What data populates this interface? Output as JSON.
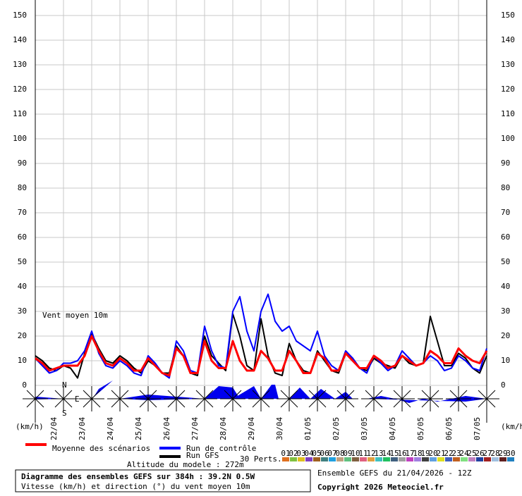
{
  "chart_data": {
    "type": "line",
    "title": "Diagramme des ensembles GEFS sur 384h : 39.2N 0.5W",
    "subtitle": "Vitesse (km/h) et direction (°) du vent moyen 10m",
    "run_label": "Ensemble GEFS du 21/04/2026 - 12Z",
    "copyright": "Copyright 2026 Meteociel.fr",
    "altitude": "Altitude du modele : 272m",
    "panel_label": "Vent moyen 10m",
    "y_unit": "(km/h)",
    "perts_label": "30 Perts.",
    "compass_labels": [
      "N",
      "E",
      "S"
    ],
    "perturbations": {
      "names": [
        "01",
        "02",
        "03",
        "04",
        "05",
        "06",
        "07",
        "08",
        "09",
        "10",
        "11",
        "12",
        "13",
        "14",
        "15",
        "16",
        "17",
        "18",
        "19",
        "20",
        "21",
        "22",
        "23",
        "24",
        "25",
        "26",
        "27",
        "28",
        "29",
        "30"
      ],
      "colors": [
        "#e07020",
        "#80c040",
        "#e0c020",
        "#8040c0",
        "#a06020",
        "#408080",
        "#20a0e0",
        "#c0a080",
        "#60c080",
        "#806040",
        "#e06080",
        "#e0a040",
        "#40c0c0",
        "#20c060",
        "#406080",
        "#a0a0a0",
        "#c040c0",
        "#a080e0",
        "#404040",
        "#60a0e0",
        "#e0e020",
        "#4060c0",
        "#c06020",
        "#80e080",
        "#c080c0",
        "#2040a0",
        "#a02020",
        "#a0c0e0",
        "#602020",
        "#2080c0"
      ]
    },
    "categories": [
      null,
      null,
      null,
      "22/04",
      null,
      null,
      null,
      "23/04",
      null,
      null,
      null,
      "24/04",
      null,
      null,
      null,
      "25/04",
      null,
      null,
      null,
      "26/04",
      null,
      null,
      null,
      "27/04",
      null,
      null,
      null,
      "28/04",
      null,
      null,
      null,
      "29/04",
      null,
      null,
      null,
      "30/04",
      null,
      null,
      null,
      "01/05",
      null,
      null,
      null,
      "02/05",
      null,
      null,
      null,
      "03/05",
      null,
      null,
      null,
      "04/05",
      null,
      null,
      null,
      "05/05",
      null,
      null,
      null,
      "06/05",
      null,
      null,
      null,
      "07/05",
      null
    ],
    "series": [
      {
        "name": "Moyenne des scénarios",
        "color": "#ff0000",
        "width": 3,
        "values": [
          11,
          9,
          6,
          7,
          8,
          8,
          8,
          12,
          20,
          14,
          9,
          8,
          11,
          9,
          6,
          6,
          11,
          8,
          5,
          4,
          15,
          12,
          5,
          5,
          18,
          10,
          7,
          7,
          18,
          10,
          6,
          6,
          14,
          11,
          6,
          6,
          14,
          10,
          5,
          5,
          13,
          11,
          6,
          6,
          13,
          10,
          7,
          7,
          12,
          10,
          7,
          8,
          12,
          10,
          8,
          9,
          14,
          12,
          9,
          9,
          15,
          12,
          10,
          9,
          14
        ]
      },
      {
        "name": "Run de contrôle",
        "color": "#0000ff",
        "width": 2,
        "values": [
          11,
          8,
          5,
          6,
          9,
          9,
          10,
          14,
          22,
          13,
          8,
          7,
          10,
          8,
          5,
          4,
          12,
          9,
          5,
          3,
          18,
          14,
          6,
          5,
          24,
          14,
          8,
          7,
          30,
          36,
          22,
          14,
          30,
          37,
          26,
          22,
          24,
          18,
          16,
          14,
          22,
          12,
          8,
          6,
          14,
          11,
          7,
          5,
          12,
          9,
          6,
          8,
          14,
          11,
          8,
          9,
          12,
          10,
          6,
          7,
          12,
          10,
          7,
          6,
          15
        ]
      },
      {
        "name": "Run GFS",
        "color": "#000000",
        "width": 2,
        "values": [
          12,
          10,
          7,
          6,
          8,
          7,
          3,
          13,
          21,
          15,
          10,
          9,
          12,
          10,
          7,
          5,
          10,
          8,
          5,
          5,
          16,
          12,
          5,
          4,
          20,
          12,
          9,
          6,
          29,
          20,
          8,
          6,
          27,
          12,
          5,
          4,
          17,
          10,
          6,
          5,
          14,
          10,
          6,
          5,
          13,
          11,
          7,
          6,
          11,
          9,
          8,
          7,
          12,
          9,
          8,
          9,
          28,
          18,
          8,
          8,
          13,
          11,
          7,
          5,
          12
        ]
      }
    ],
    "ylim": [
      0,
      150
    ],
    "yticks": [
      0,
      10,
      20,
      30,
      40,
      50,
      60,
      70,
      80,
      90,
      100,
      110,
      120,
      130,
      140,
      150
    ],
    "grid": true
  }
}
